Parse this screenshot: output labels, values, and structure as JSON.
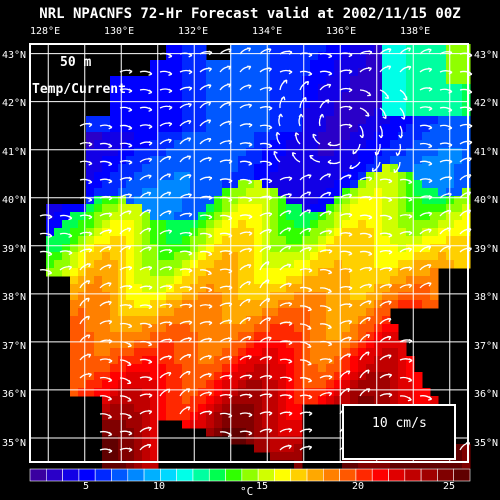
{
  "title": "NRL NPACNFS 72-Hr Forecast valid at 2002/11/15 00Z",
  "depth_label": "50 m",
  "field_label": "Temp/Current",
  "longitude_labels": [
    "128°E",
    "130°E",
    "132°E",
    "134°E",
    "136°E",
    "138°E"
  ],
  "latitude_labels": [
    "43°N",
    "42°N",
    "41°N",
    "40°N",
    "39°N",
    "38°N",
    "37°N",
    "36°N",
    "35°N"
  ],
  "scale_vector_label": "10 cm/s",
  "colorbar": {
    "ticks": [
      "5",
      "10",
      "15",
      "20",
      "25"
    ],
    "unit": "°C",
    "colors": [
      "#3a00a0",
      "#2a00c8",
      "#1200e6",
      "#0000ff",
      "#0028ff",
      "#0058ff",
      "#0088ff",
      "#00b0ff",
      "#00d8ff",
      "#00ffe8",
      "#00ffa0",
      "#00ff50",
      "#30ff00",
      "#90ff00",
      "#d0ff00",
      "#ffff00",
      "#ffd000",
      "#ffa800",
      "#ff8000",
      "#ff5800",
      "#ff2800",
      "#ff0000",
      "#e00000",
      "#c00000",
      "#a00000",
      "#800000",
      "#600000"
    ]
  },
  "map": {
    "extent": {
      "lon_min": 127.5,
      "lon_max": 139.5,
      "lat_min": 34.5,
      "lat_max": 43.2
    },
    "background": "#000000",
    "grid_color": "#ffffff",
    "vector_color": "#ffffff"
  }
}
